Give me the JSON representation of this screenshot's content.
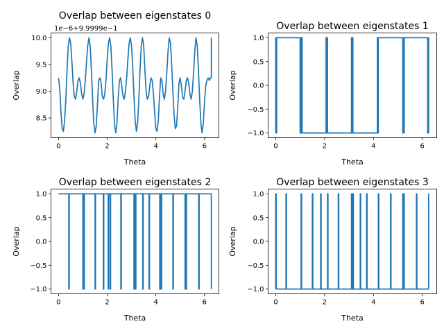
{
  "colors": {
    "series": "#1f77b4"
  },
  "chart_data": [
    {
      "type": "line",
      "title": "Overlap between eigenstates 0",
      "xlabel": "Theta",
      "ylabel": "Overlap",
      "offset_text": "1e−6+9.9999e−1",
      "xlim": [
        -0.31,
        6.59
      ],
      "ylim": [
        8.13,
        10.09
      ],
      "xticks": [
        0,
        2,
        4,
        6
      ],
      "xtick_labels": [
        "0",
        "2",
        "4",
        "6"
      ],
      "yticks": [
        8.5,
        9.0,
        9.5,
        10.0
      ],
      "ytick_labels": [
        "8.5",
        "9.0",
        "9.5",
        "10.0"
      ],
      "series": [
        {
          "x": [
            0.0,
            0.05,
            0.1,
            0.15,
            0.2,
            0.25,
            0.3,
            0.35,
            0.4,
            0.45,
            0.5,
            0.55,
            0.6,
            0.65,
            0.7,
            0.75,
            0.8,
            0.85,
            0.9,
            0.95,
            1.0,
            1.05,
            1.1,
            1.15,
            1.2,
            1.25,
            1.3,
            1.35,
            1.4,
            1.45,
            1.5,
            1.55,
            1.6,
            1.65,
            1.7,
            1.75,
            1.8,
            1.85,
            1.9,
            1.95,
            2.0,
            2.05,
            2.1,
            2.15,
            2.2,
            2.25,
            2.3,
            2.35,
            2.4,
            2.45,
            2.5,
            2.55,
            2.6,
            2.65,
            2.7,
            2.75,
            2.8,
            2.85,
            2.9,
            2.95,
            3.0,
            3.05,
            3.1,
            3.15,
            3.2,
            3.25,
            3.3,
            3.35,
            3.4,
            3.45,
            3.5,
            3.55,
            3.6,
            3.65,
            3.7,
            3.75,
            3.8,
            3.85,
            3.9,
            3.95,
            4.0,
            4.05,
            4.1,
            4.15,
            4.2,
            4.25,
            4.3,
            4.35,
            4.4,
            4.45,
            4.5,
            4.55,
            4.6,
            4.65,
            4.7,
            4.75,
            4.8,
            4.85,
            4.9,
            4.95,
            5.0,
            5.05,
            5.1,
            5.15,
            5.2,
            5.25,
            5.3,
            5.35,
            5.4,
            5.45,
            5.5,
            5.55,
            5.6,
            5.65,
            5.7,
            5.75,
            5.8,
            5.85,
            5.9,
            5.95,
            6.0,
            6.05,
            6.1,
            6.15,
            6.2,
            6.25,
            6.28,
            6.28
          ],
          "y": [
            9.25,
            9.05,
            8.6,
            8.3,
            8.25,
            8.45,
            8.85,
            9.4,
            9.85,
            10.0,
            9.9,
            9.55,
            9.15,
            8.9,
            8.85,
            9.0,
            9.2,
            9.25,
            9.15,
            8.95,
            8.85,
            8.95,
            9.2,
            9.55,
            9.85,
            10.0,
            9.85,
            9.4,
            8.85,
            8.4,
            8.22,
            8.35,
            8.75,
            9.2,
            9.25,
            9.15,
            8.9,
            8.85,
            8.95,
            9.2,
            9.6,
            9.9,
            10.0,
            9.85,
            9.4,
            8.85,
            8.4,
            8.22,
            8.4,
            8.85,
            9.2,
            9.25,
            9.1,
            8.9,
            8.85,
            9.0,
            9.25,
            9.6,
            9.9,
            10.0,
            9.85,
            9.45,
            8.9,
            8.45,
            8.25,
            8.4,
            8.85,
            9.4,
            9.85,
            10.0,
            9.85,
            9.4,
            9.0,
            8.85,
            8.9,
            9.1,
            9.25,
            9.2,
            8.95,
            8.6,
            8.3,
            8.25,
            8.45,
            8.9,
            9.25,
            9.2,
            8.95,
            8.85,
            9.0,
            9.35,
            9.75,
            10.0,
            9.9,
            9.5,
            9.0,
            8.55,
            8.3,
            8.35,
            8.7,
            9.15,
            9.25,
            9.1,
            8.9,
            8.85,
            9.0,
            9.2,
            9.25,
            9.15,
            8.95,
            8.85,
            9.0,
            9.35,
            9.75,
            10.0,
            9.85,
            9.4,
            8.85,
            8.4,
            8.22,
            8.4,
            8.8,
            9.1,
            9.2,
            9.25,
            9.2,
            9.25,
            9.25,
            10.0
          ]
        }
      ]
    },
    {
      "type": "line",
      "title": "Overlap between eigenstates 1",
      "xlabel": "Theta",
      "ylabel": "Overlap",
      "xlim": [
        -0.31,
        6.59
      ],
      "ylim": [
        -1.1,
        1.1
      ],
      "xticks": [
        0,
        2,
        4,
        6
      ],
      "xtick_labels": [
        "0",
        "2",
        "4",
        "6"
      ],
      "yticks": [
        -1.0,
        -0.5,
        0.0,
        0.5,
        1.0
      ],
      "ytick_labels": [
        "−1.0",
        "−0.5",
        "0.0",
        "0.5",
        "1.0"
      ],
      "series": [
        {
          "x": [
            0.0,
            0.0,
            0.02,
            0.02,
            0.04,
            0.04,
            1.0,
            1.0,
            1.02,
            1.02,
            1.04,
            1.04,
            1.06,
            1.06,
            1.08,
            1.08,
            2.06,
            2.06,
            2.08,
            2.08,
            2.1,
            2.1,
            2.12,
            2.12,
            3.1,
            3.1,
            3.12,
            3.12,
            3.14,
            3.14,
            3.16,
            3.16,
            4.16,
            4.16,
            4.18,
            4.18,
            4.2,
            4.2,
            5.2,
            5.2,
            5.22,
            5.22,
            5.24,
            5.24,
            5.26,
            5.26,
            6.22,
            6.22,
            6.24,
            6.24,
            6.26,
            6.26,
            6.28
          ],
          "y": [
            -1,
            1,
            1,
            -1,
            -1,
            1,
            1,
            -1,
            -1,
            1,
            1,
            -1,
            -1,
            1,
            1,
            -1,
            -1,
            1,
            1,
            -1,
            -1,
            1,
            1,
            -1,
            -1,
            1,
            1,
            -1,
            -1,
            1,
            1,
            -1,
            -1,
            1,
            1,
            -1,
            -1,
            1,
            1,
            -1,
            -1,
            1,
            1,
            -1,
            -1,
            1,
            1,
            -1,
            -1,
            1,
            1,
            -1,
            -1
          ]
        }
      ]
    },
    {
      "type": "line",
      "title": "Overlap between eigenstates 2",
      "xlabel": "Theta",
      "ylabel": "Overlap",
      "xlim": [
        -0.31,
        6.59
      ],
      "ylim": [
        -1.1,
        1.1
      ],
      "xticks": [
        0,
        2,
        4,
        6
      ],
      "xtick_labels": [
        "0",
        "2",
        "4",
        "6"
      ],
      "yticks": [
        -1.0,
        -0.5,
        0.0,
        0.5,
        1.0
      ],
      "ytick_labels": [
        "−1.0",
        "−0.5",
        "0.0",
        "0.5",
        "1.0"
      ],
      "series": [
        {
          "x": [
            0.0,
            0.42,
            0.42,
            0.44,
            0.44,
            1.0,
            1.0,
            1.02,
            1.02,
            1.04,
            1.04,
            1.06,
            1.06,
            1.5,
            1.5,
            1.52,
            1.52,
            1.84,
            1.84,
            1.86,
            1.86,
            2.04,
            2.04,
            2.06,
            2.06,
            2.12,
            2.12,
            2.14,
            2.14,
            2.56,
            2.56,
            2.58,
            2.58,
            3.1,
            3.1,
            3.12,
            3.12,
            3.16,
            3.16,
            3.18,
            3.18,
            3.46,
            3.46,
            3.48,
            3.48,
            3.72,
            3.72,
            3.74,
            3.74,
            4.16,
            4.16,
            4.18,
            4.18,
            4.22,
            4.22,
            4.24,
            4.24,
            4.7,
            4.7,
            4.72,
            4.72,
            5.2,
            5.2,
            5.22,
            5.22,
            5.24,
            5.24,
            5.26,
            5.26,
            5.76,
            5.76,
            5.78,
            5.78,
            6.28,
            6.28
          ],
          "y": [
            1,
            1,
            -1,
            -1,
            1,
            1,
            -1,
            -1,
            1,
            1,
            -1,
            -1,
            1,
            1,
            -1,
            -1,
            1,
            1,
            -1,
            -1,
            1,
            1,
            -1,
            -1,
            1,
            1,
            -1,
            -1,
            1,
            1,
            -1,
            -1,
            1,
            1,
            -1,
            -1,
            1,
            1,
            -1,
            -1,
            1,
            1,
            -1,
            -1,
            1,
            1,
            -1,
            -1,
            1,
            1,
            -1,
            -1,
            1,
            1,
            -1,
            -1,
            1,
            1,
            -1,
            -1,
            1,
            1,
            -1,
            -1,
            1,
            1,
            -1,
            -1,
            1,
            1,
            -1,
            -1,
            1,
            1,
            -1
          ]
        }
      ]
    },
    {
      "type": "line",
      "title": "Overlap between eigenstates 3",
      "xlabel": "Theta",
      "ylabel": "Overlap",
      "xlim": [
        -0.31,
        6.59
      ],
      "ylim": [
        -1.1,
        1.1
      ],
      "xticks": [
        0,
        2,
        4,
        6
      ],
      "xtick_labels": [
        "0",
        "2",
        "4",
        "6"
      ],
      "yticks": [
        -1.0,
        -0.5,
        0.0,
        0.5,
        1.0
      ],
      "ytick_labels": [
        "−1.0",
        "−0.5",
        "0.0",
        "0.5",
        "1.0"
      ],
      "series": [
        {
          "x": [
            0.0,
            0.0,
            0.02,
            0.02,
            0.42,
            0.42,
            0.44,
            0.44,
            1.04,
            1.04,
            1.06,
            1.06,
            1.5,
            1.5,
            1.52,
            1.52,
            1.84,
            1.84,
            1.86,
            1.86,
            2.12,
            2.12,
            2.14,
            2.14,
            2.56,
            2.56,
            2.58,
            2.58,
            3.1,
            3.1,
            3.12,
            3.12,
            3.16,
            3.16,
            3.18,
            3.18,
            3.46,
            3.46,
            3.48,
            3.48,
            3.72,
            3.72,
            3.74,
            3.74,
            4.2,
            4.2,
            4.22,
            4.22,
            4.7,
            4.7,
            4.72,
            4.72,
            5.2,
            5.2,
            5.22,
            5.22,
            5.24,
            5.24,
            5.26,
            5.26,
            5.76,
            5.76,
            5.78,
            5.78,
            6.26,
            6.26,
            6.28
          ],
          "y": [
            -1,
            1,
            1,
            -1,
            -1,
            1,
            1,
            -1,
            -1,
            1,
            1,
            -1,
            -1,
            1,
            1,
            -1,
            -1,
            1,
            1,
            -1,
            -1,
            1,
            1,
            -1,
            -1,
            1,
            1,
            -1,
            -1,
            1,
            1,
            -1,
            -1,
            1,
            1,
            -1,
            -1,
            1,
            1,
            -1,
            -1,
            1,
            1,
            -1,
            -1,
            1,
            1,
            -1,
            -1,
            1,
            1,
            -1,
            -1,
            1,
            1,
            -1,
            -1,
            1,
            1,
            -1,
            -1,
            1,
            1,
            -1,
            -1,
            1,
            1
          ]
        }
      ]
    }
  ]
}
